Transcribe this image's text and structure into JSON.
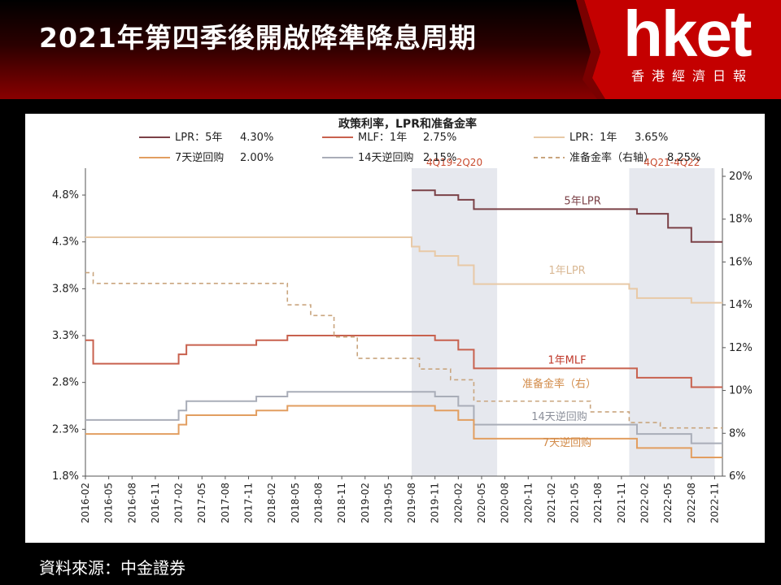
{
  "headline": "2021年第四季後開啟降準降息周期",
  "logo": {
    "text": "hket",
    "subtitle": "香港經濟日報"
  },
  "source": "資料來源：中金證券",
  "colors": {
    "header_red": "#c00000",
    "shade": "#e6e8ee"
  },
  "chart_data": {
    "type": "line",
    "title": "政策利率，LPR和准备金率",
    "x": [
      "2016-02",
      "2016-05",
      "2016-08",
      "2016-11",
      "2017-02",
      "2017-05",
      "2017-08",
      "2017-11",
      "2018-02",
      "2018-05",
      "2018-08",
      "2018-11",
      "2019-02",
      "2019-05",
      "2019-08",
      "2019-11",
      "2020-02",
      "2020-05",
      "2020-08",
      "2020-11",
      "2021-02",
      "2021-05",
      "2021-08",
      "2021-11",
      "2022-02",
      "2022-05",
      "2022-08",
      "2022-11"
    ],
    "xlim": [
      "2016-02",
      "2022-12"
    ],
    "ylim": [
      1.8,
      5.0
    ],
    "y_ticks": [
      "4.8%",
      "4.3%",
      "3.8%",
      "3.3%",
      "2.8%",
      "2.3%",
      "1.8%"
    ],
    "y2lim": [
      6,
      20
    ],
    "y2_ticks": [
      "20%",
      "18%",
      "16%",
      "14%",
      "12%",
      "10%",
      "8%",
      "6%"
    ],
    "shaded_regions": [
      {
        "label": "4Q19-2Q20",
        "from": "2019-08",
        "to": "2020-07"
      },
      {
        "label": "4Q21-4Q22",
        "from": "2021-12",
        "to": "2022-11"
      }
    ],
    "legend": [
      {
        "label": "LPR：5年",
        "value": "4.30%",
        "series": "lpr5"
      },
      {
        "label": "MLF：1年",
        "value": "2.75%",
        "series": "mlf"
      },
      {
        "label": "LPR：1年",
        "value": "3.65%",
        "series": "lpr1"
      },
      {
        "label": "7天逆回购",
        "value": "2.00%",
        "series": "rr7"
      },
      {
        "label": "14天逆回购",
        "value": "2.15%",
        "series": "rr14"
      },
      {
        "label": "准备金率（右轴）",
        "value": "8.25%",
        "series": "rrr"
      }
    ],
    "series": [
      {
        "id": "lpr5",
        "name": "5年LPR",
        "color": "#7b4147",
        "axis": "left",
        "dash": false,
        "points": [
          [
            "2019-08",
            4.85
          ],
          [
            "2019-11",
            4.8
          ],
          [
            "2020-02",
            4.75
          ],
          [
            "2020-04",
            4.65
          ],
          [
            "2022-01",
            4.6
          ],
          [
            "2022-05",
            4.45
          ],
          [
            "2022-08",
            4.3
          ],
          [
            "2022-12",
            4.3
          ]
        ]
      },
      {
        "id": "lpr1",
        "name": "1年LPR",
        "color": "#e8c9a6",
        "axis": "left",
        "dash": false,
        "points": [
          [
            "2016-02",
            4.35
          ],
          [
            "2019-08",
            4.25
          ],
          [
            "2019-09",
            4.2
          ],
          [
            "2019-11",
            4.15
          ],
          [
            "2020-02",
            4.05
          ],
          [
            "2020-04",
            3.85
          ],
          [
            "2021-12",
            3.8
          ],
          [
            "2022-01",
            3.7
          ],
          [
            "2022-08",
            3.65
          ],
          [
            "2022-12",
            3.65
          ]
        ]
      },
      {
        "id": "mlf",
        "name": "1年MLF",
        "color": "#c8614e",
        "axis": "left",
        "dash": false,
        "points": [
          [
            "2016-02",
            3.25
          ],
          [
            "2016-03",
            3.0
          ],
          [
            "2017-02",
            3.1
          ],
          [
            "2017-03",
            3.2
          ],
          [
            "2017-12",
            3.25
          ],
          [
            "2018-04",
            3.3
          ],
          [
            "2019-11",
            3.25
          ],
          [
            "2020-02",
            3.15
          ],
          [
            "2020-04",
            2.95
          ],
          [
            "2022-01",
            2.85
          ],
          [
            "2022-08",
            2.75
          ],
          [
            "2022-12",
            2.75
          ]
        ]
      },
      {
        "id": "rr14",
        "name": "14天逆回购",
        "color": "#a9adb8",
        "axis": "left",
        "dash": false,
        "points": [
          [
            "2016-02",
            2.4
          ],
          [
            "2017-02",
            2.5
          ],
          [
            "2017-03",
            2.6
          ],
          [
            "2017-12",
            2.65
          ],
          [
            "2018-04",
            2.7
          ],
          [
            "2019-11",
            2.65
          ],
          [
            "2020-02",
            2.55
          ],
          [
            "2020-04",
            2.35
          ],
          [
            "2022-01",
            2.25
          ],
          [
            "2022-08",
            2.15
          ],
          [
            "2022-12",
            2.15
          ]
        ]
      },
      {
        "id": "rr7",
        "name": "7天逆回购",
        "color": "#e29e60",
        "axis": "left",
        "dash": false,
        "points": [
          [
            "2016-02",
            2.25
          ],
          [
            "2017-02",
            2.35
          ],
          [
            "2017-03",
            2.45
          ],
          [
            "2017-12",
            2.5
          ],
          [
            "2018-04",
            2.55
          ],
          [
            "2019-11",
            2.5
          ],
          [
            "2020-02",
            2.4
          ],
          [
            "2020-04",
            2.2
          ],
          [
            "2022-01",
            2.1
          ],
          [
            "2022-08",
            2.0
          ],
          [
            "2022-12",
            2.0
          ]
        ]
      },
      {
        "id": "rrr",
        "name": "准备金率（右）",
        "color": "#c9a57e",
        "axis": "right",
        "dash": true,
        "points": [
          [
            "2016-02",
            15.5
          ],
          [
            "2016-03",
            15.0
          ],
          [
            "2018-04",
            14.0
          ],
          [
            "2018-07",
            13.5
          ],
          [
            "2018-10",
            12.5
          ],
          [
            "2019-01",
            11.5
          ],
          [
            "2019-09",
            11.0
          ],
          [
            "2020-01",
            10.5
          ],
          [
            "2020-04",
            9.5
          ],
          [
            "2021-07",
            9.0
          ],
          [
            "2021-12",
            8.5
          ],
          [
            "2022-04",
            8.25
          ],
          [
            "2022-12",
            8.25
          ]
        ]
      }
    ],
    "annotations": [
      {
        "text": "5年LPR",
        "x": "2021-06",
        "y": 4.7,
        "color": "#7b4147"
      },
      {
        "text": "1年LPR",
        "x": "2021-04",
        "y": 3.96,
        "color": "#d9b894"
      },
      {
        "text": "1年MLF",
        "x": "2021-04",
        "y": 3.0,
        "color": "#c0392b"
      },
      {
        "text": "准备金率（右）",
        "x": "2021-03",
        "y": 2.75,
        "color": "#d28b49"
      },
      {
        "text": "14天逆回购",
        "x": "2021-03",
        "y": 2.4,
        "color": "#8b8f9a"
      },
      {
        "text": "7天逆回购",
        "x": "2021-04",
        "y": 2.12,
        "color": "#d28b49"
      }
    ]
  }
}
